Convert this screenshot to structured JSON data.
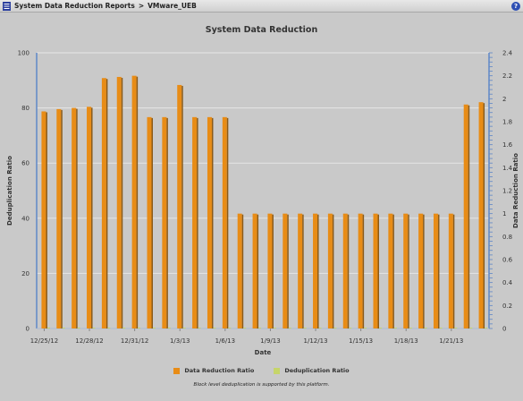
{
  "window": {
    "breadcrumb": [
      "System Data Reduction Reports",
      "VMware_UEB"
    ],
    "breadcrumb_separator": ">",
    "help_glyph": "?",
    "icons": [
      "report-icon",
      "help-icon"
    ]
  },
  "chart_data": {
    "type": "bar",
    "title": "System Data Reduction",
    "xlabel": "Date",
    "ylabel": "Deduplication Ratio",
    "y2label": "Data Reduction Ratio",
    "ylim": [
      0,
      100
    ],
    "y2lim": [
      0,
      2.4
    ],
    "yticks": [
      0,
      20,
      40,
      60,
      80,
      100
    ],
    "y2ticks": [
      0,
      0.2,
      0.4,
      0.6,
      0.8,
      1,
      1.2,
      1.4,
      1.6,
      1.8,
      2,
      2.2,
      2.4
    ],
    "xtick_labels": [
      "12/25/12",
      "12/28/12",
      "12/31/12",
      "1/3/13",
      "1/6/13",
      "1/9/13",
      "1/12/13",
      "1/15/13",
      "1/18/13",
      "1/21/13"
    ],
    "xtick_every": 3,
    "grid": "horizontal",
    "series": [
      {
        "name": "Data Reduction Ratio",
        "color": "#e88c16",
        "axis": "right",
        "values": [
          1.89,
          1.91,
          1.92,
          1.93,
          2.18,
          2.19,
          2.2,
          1.84,
          1.84,
          2.12,
          1.84,
          1.84,
          1.84,
          1,
          1,
          1,
          1,
          1,
          1,
          1,
          1,
          1,
          1,
          1,
          1,
          1,
          1,
          1,
          1.95,
          1.97
        ]
      },
      {
        "name": "Deduplication Ratio",
        "color": "#c6d56a",
        "axis": "left",
        "values": [
          0,
          0,
          0,
          0,
          0,
          0,
          0,
          0,
          0,
          0,
          0,
          0,
          0,
          0,
          0,
          0,
          0,
          0,
          0,
          0,
          0,
          0,
          0,
          0,
          0,
          0,
          0,
          0,
          0,
          0
        ]
      }
    ],
    "legend_position": "bottom",
    "footnote": "Block level deduplication is supported by this platform."
  }
}
